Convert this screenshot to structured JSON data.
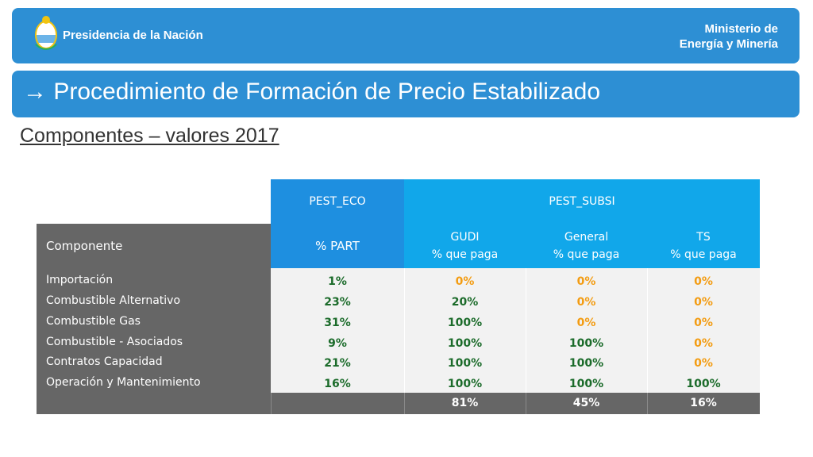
{
  "header": {
    "org": "Presidencia de la Nación",
    "ministry_line1": "Ministerio de",
    "ministry_line2": "Energía y Minería"
  },
  "slide": {
    "title": "→ Procedimiento de Formación de Precio Estabilizado",
    "subtitle": "Componentes – valores 2017"
  },
  "table": {
    "group_eco": "PEST_ECO",
    "group_subsi": "PEST_SUBSI",
    "col_componente": "Componente",
    "col_part": "% PART",
    "col_gudi": "GUDI",
    "col_general": "General",
    "col_ts": "TS",
    "col_sub": "% que paga",
    "rows": [
      {
        "name": "Importación",
        "part": "1%",
        "gudi": "0%",
        "general": "0%",
        "ts": "0%"
      },
      {
        "name": "Combustible Alternativo",
        "part": "23%",
        "gudi": "20%",
        "general": "0%",
        "ts": "0%"
      },
      {
        "name": "Combustible Gas",
        "part": "31%",
        "gudi": "100%",
        "general": "0%",
        "ts": "0%"
      },
      {
        "name": "Combustible - Asociados",
        "part": "9%",
        "gudi": "100%",
        "general": "100%",
        "ts": "0%"
      },
      {
        "name": "Contratos Capacidad",
        "part": "21%",
        "gudi": "100%",
        "general": "100%",
        "ts": "0%"
      },
      {
        "name": "Operación y Mantenimiento",
        "part": "16%",
        "gudi": "100%",
        "general": "100%",
        "ts": "100%"
      }
    ],
    "totals": {
      "gudi": "81%",
      "general": "45%",
      "ts": "16%"
    }
  },
  "colors": {
    "brand_blue": "#2d8fd4",
    "green_value": "#1b6b2a",
    "orange_value": "#f39c12"
  }
}
